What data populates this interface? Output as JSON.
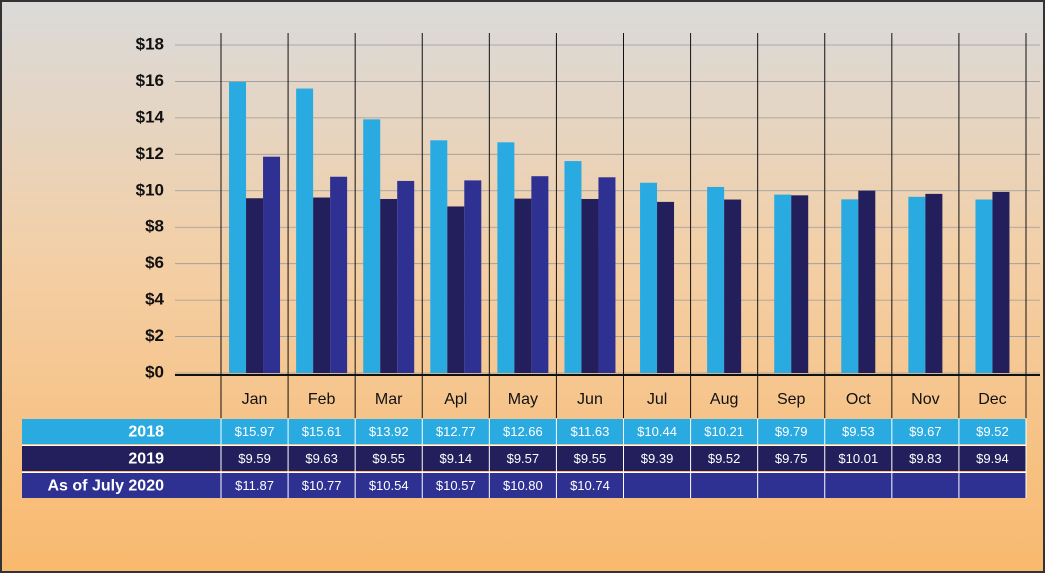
{
  "chart_data": {
    "type": "bar",
    "categories": [
      "Jan",
      "Feb",
      "Mar",
      "Apl",
      "May",
      "Jun",
      "Jul",
      "Aug",
      "Sep",
      "Oct",
      "Nov",
      "Dec"
    ],
    "series": [
      {
        "name": "2018",
        "color": "#29abe2",
        "values": [
          15.97,
          15.61,
          13.92,
          12.77,
          12.66,
          11.63,
          10.44,
          10.21,
          9.79,
          9.53,
          9.67,
          9.52
        ],
        "value_labels": [
          "$15.97",
          "$15.61",
          "$13.92",
          "$12.77",
          "$12.66",
          "$11.63",
          "$10.44",
          "$10.21",
          "$9.79",
          "$9.53",
          "$9.67",
          "$9.52"
        ]
      },
      {
        "name": "2019",
        "color": "#231f5c",
        "values": [
          9.59,
          9.63,
          9.55,
          9.14,
          9.57,
          9.55,
          9.39,
          9.52,
          9.75,
          10.01,
          9.83,
          9.94
        ],
        "value_labels": [
          "$9.59",
          "$9.63",
          "$9.55",
          "$9.14",
          "$9.57",
          "$9.55",
          "$9.39",
          "$9.52",
          "$9.75",
          "$10.01",
          "$9.83",
          "$9.94"
        ]
      },
      {
        "name": "As of July 2020",
        "color": "#2e3192",
        "values": [
          11.87,
          10.77,
          10.54,
          10.57,
          10.8,
          10.74,
          null,
          null,
          null,
          null,
          null,
          null
        ],
        "value_labels": [
          "$11.87",
          "$10.77",
          "$10.54",
          "$10.57",
          "$10.80",
          "$10.74",
          null,
          null,
          null,
          null,
          null,
          null
        ]
      }
    ],
    "ylim": [
      0,
      18
    ],
    "yticks": [
      {
        "value": 0,
        "label": "$0"
      },
      {
        "value": 2,
        "label": "$2"
      },
      {
        "value": 4,
        "label": "$4"
      },
      {
        "value": 6,
        "label": "$6"
      },
      {
        "value": 8,
        "label": "$8"
      },
      {
        "value": 10,
        "label": "$10"
      },
      {
        "value": 12,
        "label": "$12"
      },
      {
        "value": 14,
        "label": "$14"
      },
      {
        "value": 16,
        "label": "$16"
      },
      {
        "value": 18,
        "label": "$18"
      }
    ],
    "grid": true
  }
}
